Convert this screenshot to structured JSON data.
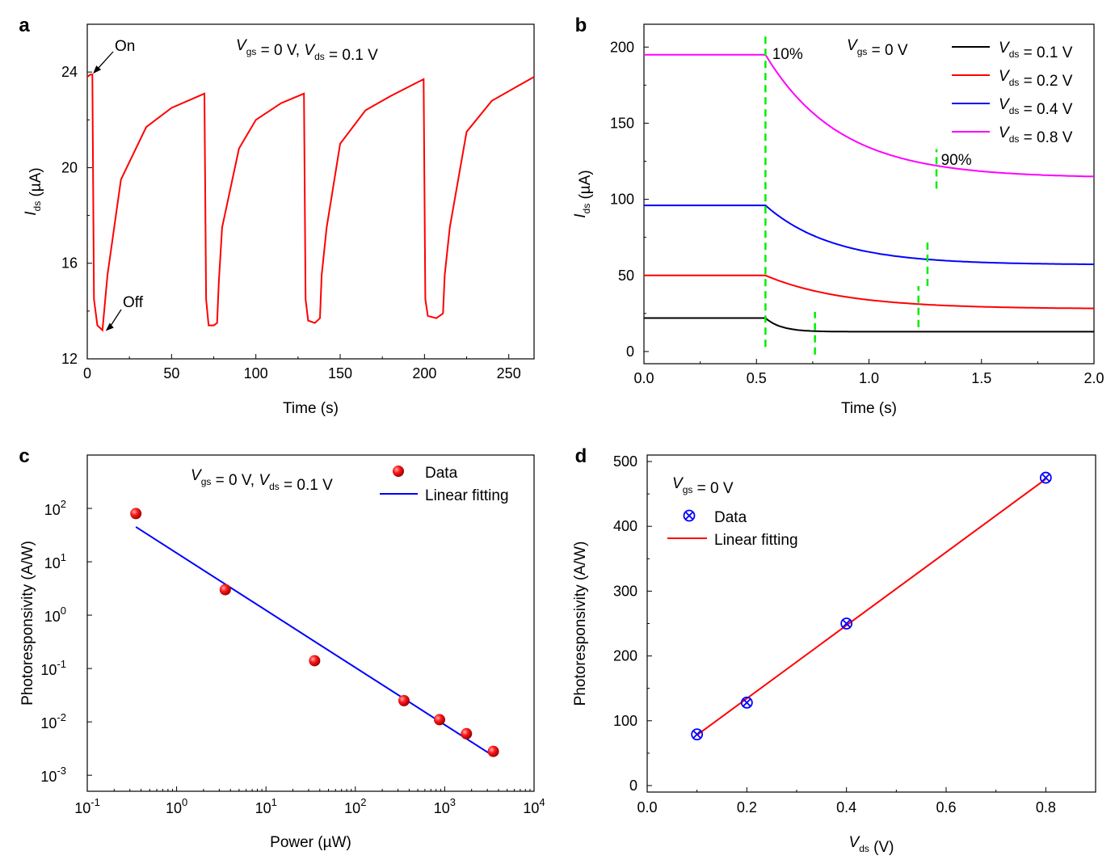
{
  "chart_data": [
    {
      "panel": "a",
      "type": "line",
      "xlabel": "Time (s)",
      "ylabel_main": "I",
      "ylabel_sub": "ds",
      "ylabel_unit": " (µA)",
      "xlim": [
        0,
        265
      ],
      "ylim": [
        12,
        26
      ],
      "xticks": [
        0,
        50,
        100,
        150,
        200,
        250
      ],
      "yticks": [
        12,
        16,
        20,
        24
      ],
      "condition": [
        {
          "t": "V",
          "i": true
        },
        {
          "t": "gs",
          "sub": true,
          "i": false
        },
        {
          "t": " = 0 V, ",
          "i": false
        },
        {
          "t": "V",
          "i": true
        },
        {
          "t": "ds",
          "sub": true,
          "i": false
        },
        {
          "t": " = 0.1 V",
          "i": false
        }
      ],
      "annotations": [
        {
          "text": "On",
          "x": 2,
          "y": 23.9
        },
        {
          "text": "Off",
          "x": 9,
          "y": 13.2
        }
      ],
      "series": [
        {
          "color": "#ff0000",
          "x": [
            0,
            2,
            3,
            4,
            6,
            9,
            12,
            20,
            35,
            50,
            69.5,
            70.5,
            72,
            75,
            77,
            78,
            80,
            90,
            100,
            115,
            128.5,
            129.5,
            131,
            135,
            138,
            139,
            142,
            150,
            165,
            180,
            199.5,
            200.5,
            202,
            207,
            211,
            212,
            215,
            225,
            240,
            255,
            265
          ],
          "y": [
            23.8,
            23.9,
            23.9,
            14.5,
            13.4,
            13.2,
            15.5,
            19.5,
            21.7,
            22.5,
            23.1,
            14.5,
            13.4,
            13.4,
            13.5,
            15.2,
            17.5,
            20.8,
            22.0,
            22.7,
            23.1,
            14.5,
            13.6,
            13.5,
            13.7,
            15.5,
            17.5,
            21.0,
            22.4,
            23.0,
            23.7,
            14.5,
            13.8,
            13.7,
            13.9,
            15.5,
            17.5,
            21.5,
            22.8,
            23.4,
            23.8
          ]
        }
      ]
    },
    {
      "panel": "b",
      "type": "line",
      "xlabel": "Time (s)",
      "ylabel_main": "I",
      "ylabel_sub": "ds",
      "ylabel_unit": " (µA)",
      "xlim": [
        0,
        2.0
      ],
      "ylim": [
        -8,
        215
      ],
      "xticks": [
        0.0,
        0.5,
        1.0,
        1.5,
        2.0
      ],
      "xtick_labels": [
        "0.0",
        "0.5",
        "1.0",
        "1.5",
        "2.0"
      ],
      "yticks": [
        0,
        50,
        100,
        150,
        200
      ],
      "condition": [
        {
          "t": "V",
          "i": true
        },
        {
          "t": "gs",
          "sub": true,
          "i": false
        },
        {
          "t": " = 0 V",
          "i": false
        }
      ],
      "annotations": [
        {
          "text": "10%",
          "x": 0.57,
          "y": 195
        },
        {
          "text": "90%",
          "x": 1.32,
          "y": 126
        }
      ],
      "legend_position": "top-right",
      "series": [
        {
          "name_parts": [
            {
              "t": "V",
              "i": true
            },
            {
              "t": "ds",
              "sub": true,
              "i": false
            },
            {
              "t": " = 0.1 V",
              "i": false
            }
          ],
          "color": "#000000",
          "plateau": 22,
          "final": 13,
          "tau": 0.07
        },
        {
          "name_parts": [
            {
              "t": "V",
              "i": true
            },
            {
              "t": "ds",
              "sub": true,
              "i": false
            },
            {
              "t": " = 0.2 V",
              "i": false
            }
          ],
          "color": "#ff0000",
          "plateau": 50,
          "final": 28,
          "tau": 0.35
        },
        {
          "name_parts": [
            {
              "t": "V",
              "i": true
            },
            {
              "t": "ds",
              "sub": true,
              "i": false
            },
            {
              "t": " = 0.4 V",
              "i": false
            }
          ],
          "color": "#0000ff",
          "plateau": 96,
          "final": 57,
          "tau": 0.3
        },
        {
          "name_parts": [
            {
              "t": "V",
              "i": true
            },
            {
              "t": "ds",
              "sub": true,
              "i": false
            },
            {
              "t": " = 0.8 V",
              "i": false
            }
          ],
          "color": "#ff00ff",
          "plateau": 195,
          "final": 114,
          "tau": 0.33
        }
      ],
      "switch_time": 0.54,
      "markers": {
        "color": "#00ee00",
        "onset": {
          "x": 0.54,
          "y_range": [
            3,
            207
          ]
        },
        "ends": [
          {
            "x": 0.76,
            "y_range": [
              -2,
              26
            ]
          },
          {
            "x": 1.22,
            "y_range": [
              16,
              43
            ]
          },
          {
            "x": 1.26,
            "y_range": [
              43,
              72
            ]
          },
          {
            "x": 1.3,
            "y_range": [
              107,
              133
            ]
          }
        ]
      }
    },
    {
      "panel": "c",
      "type": "scatter",
      "xlabel": "Power (µW)",
      "ylabel": "Photoresponsivity (A/W)",
      "xscale": "log",
      "yscale": "log",
      "xlim_exp": [
        -1,
        4
      ],
      "ylim_exp": [
        -3.3,
        3.0
      ],
      "xtick_exps": [
        -1,
        0,
        1,
        2,
        3,
        4
      ],
      "ytick_exps": [
        -3,
        -2,
        -1,
        0,
        1,
        2
      ],
      "condition": [
        {
          "t": "V",
          "i": true
        },
        {
          "t": "gs",
          "sub": true,
          "i": false
        },
        {
          "t": " = 0 V, ",
          "i": false
        },
        {
          "t": "V",
          "i": true
        },
        {
          "t": "ds",
          "sub": true,
          "i": false
        },
        {
          "t": " = 0.1 V",
          "i": false
        }
      ],
      "legend": [
        "Data",
        "Linear fitting"
      ],
      "legend_position": "top-right",
      "data": {
        "x": [
          0.35,
          3.5,
          35,
          350,
          875,
          1750,
          3500
        ],
        "y": [
          80,
          3,
          0.14,
          0.025,
          0.011,
          0.006,
          0.0028
        ],
        "color": "#ff0000"
      },
      "fit": {
        "x": [
          0.35,
          3500
        ],
        "y": [
          45,
          0.0023
        ],
        "color": "#0000ff"
      }
    },
    {
      "panel": "d",
      "type": "scatter",
      "xlabel_main": "V",
      "xlabel_sub": "ds",
      "xlabel_unit": " (V)",
      "ylabel": "Photoresponsivity (A/W)",
      "xlim": [
        0,
        0.9
      ],
      "ylim": [
        -10,
        510
      ],
      "xticks": [
        0.0,
        0.2,
        0.4,
        0.6,
        0.8
      ],
      "xtick_labels": [
        "0.0",
        "0.2",
        "0.4",
        "0.6",
        "0.8"
      ],
      "yticks": [
        0,
        100,
        200,
        300,
        400,
        500
      ],
      "condition": [
        {
          "t": "V",
          "i": true
        },
        {
          "t": "gs",
          "sub": true,
          "i": false
        },
        {
          "t": " = 0 V",
          "i": false
        }
      ],
      "legend": [
        "Data",
        "Linear fitting"
      ],
      "legend_position": "top-left",
      "data": {
        "x": [
          0.1,
          0.2,
          0.4,
          0.8
        ],
        "y": [
          79,
          128,
          250,
          475
        ],
        "color": "#0000ff"
      },
      "fit": {
        "x": [
          0.1,
          0.8
        ],
        "y": [
          78,
          473
        ],
        "color": "#ff0000"
      }
    }
  ]
}
